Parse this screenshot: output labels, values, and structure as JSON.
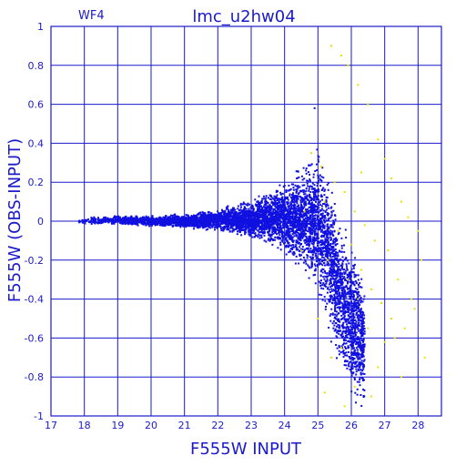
{
  "chart_data": {
    "type": "scatter",
    "title": "lmc_u2hw04",
    "subtitle": "WF4",
    "xlabel": "F555W  INPUT",
    "ylabel": "F555W  (OBS-INPUT)",
    "xlim": [
      17,
      28.7
    ],
    "ylim": [
      -1,
      1
    ],
    "x_ticks": [
      "17",
      "18",
      "19",
      "20",
      "21",
      "22",
      "23",
      "24",
      "25",
      "26",
      "27",
      "28"
    ],
    "y_ticks": [
      "-1",
      "-0.8",
      "-0.6",
      "-0.4",
      "-0.2",
      "0",
      "0.2",
      "0.4",
      "0.6",
      "0.8",
      "1"
    ],
    "grid": true,
    "series": [
      {
        "color": "#1010e0",
        "envelope_x": [
          17.8,
          19.0,
          20.0,
          21.0,
          22.0,
          23.0,
          24.0,
          24.6,
          25.0,
          25.3,
          25.6,
          26.0,
          26.4
        ],
        "envelope_upper": [
          0.02,
          0.03,
          0.03,
          0.04,
          0.07,
          0.12,
          0.22,
          0.32,
          0.42,
          0.33,
          0.1,
          -0.05,
          -0.25
        ],
        "envelope_lower": [
          -0.02,
          -0.02,
          -0.03,
          -0.04,
          -0.06,
          -0.1,
          -0.18,
          -0.3,
          -0.45,
          -0.6,
          -0.8,
          -0.95,
          -1.0
        ],
        "peak": [
          24.9,
          0.58
        ]
      },
      {
        "color": "#e8e000",
        "x": [
          25.4,
          25.7,
          25.9,
          26.2,
          26.5,
          26.8,
          27.0,
          27.2,
          27.5,
          27.7,
          28.0,
          28.1,
          25.1,
          25.5,
          25.8,
          26.1,
          26.4,
          26.7,
          27.1,
          27.4,
          27.9,
          25.2,
          25.6,
          26.0,
          26.3,
          26.6,
          26.9,
          27.3,
          27.6,
          28.2,
          24.8,
          25.3,
          25.9,
          26.2,
          26.5,
          27.0,
          27.5,
          25.0,
          25.7,
          26.8,
          24.6,
          25.4,
          26.1,
          26.6,
          27.8,
          24.5,
          25.8,
          26.3,
          27.2,
          25.2
        ],
        "y": [
          0.9,
          0.85,
          0.8,
          0.7,
          0.6,
          0.42,
          0.32,
          0.22,
          0.1,
          0.02,
          -0.05,
          -0.2,
          0.28,
          0.2,
          0.15,
          0.05,
          -0.02,
          -0.1,
          -0.15,
          -0.3,
          -0.45,
          0.1,
          -0.05,
          -0.12,
          -0.25,
          -0.35,
          -0.42,
          -0.6,
          -0.55,
          -0.7,
          0.35,
          -0.2,
          -0.3,
          -0.4,
          -0.55,
          -0.62,
          -0.8,
          -0.5,
          -0.65,
          -0.75,
          0.05,
          -0.7,
          -0.85,
          -0.9,
          -0.4,
          -0.15,
          -0.95,
          0.25,
          -0.5,
          -0.88
        ]
      }
    ]
  }
}
